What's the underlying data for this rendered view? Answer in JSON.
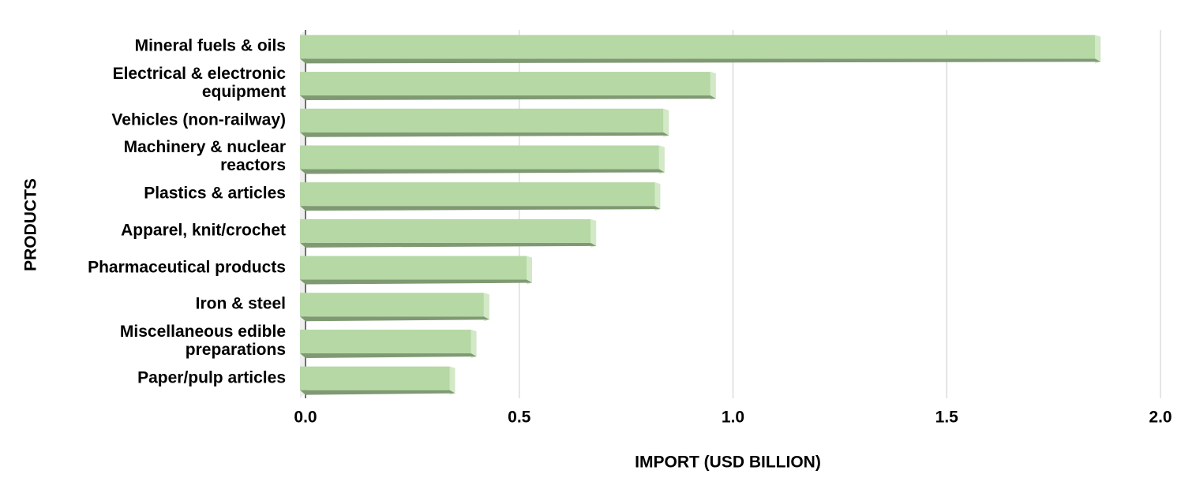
{
  "chart_data": {
    "type": "bar",
    "orientation": "horizontal",
    "x_label": "IMPORT (USD BILLION)",
    "y_label": "PRODUCTS",
    "categories": [
      "Mineral fuels & oils",
      "Electrical & electronic equipment",
      "Vehicles (non-railway)",
      "Machinery & nuclear reactors",
      "Plastics & articles",
      "Apparel, knit/crochet",
      "Pharmaceutical products",
      "Iron & steel",
      "Miscellaneous edible preparations",
      "Paper/pulp articles"
    ],
    "values": [
      1.86,
      0.96,
      0.85,
      0.84,
      0.83,
      0.68,
      0.53,
      0.43,
      0.4,
      0.35
    ],
    "color": "#b5d8a5",
    "xlim": [
      0,
      2
    ],
    "xticks": [
      {
        "value": 0,
        "label": "0.0"
      },
      0.5,
      {
        "value": 1,
        "label": "1.0"
      },
      1.5,
      {
        "value": 2,
        "label": "2.0"
      }
    ],
    "grid": true
  }
}
